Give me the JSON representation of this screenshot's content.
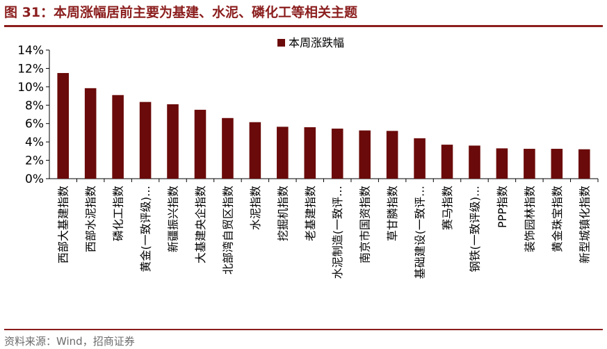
{
  "header": {
    "title": "图 31：本周涨幅居前主要为基建、水泥、磷化工等相关主题"
  },
  "footer": {
    "source": "资料来源：Wind，招商证券"
  },
  "colors": {
    "bar": "#6b0a0a",
    "accent": "#8b1d1d"
  },
  "chart_data": {
    "type": "bar",
    "title": "",
    "xlabel": "",
    "ylabel": "",
    "ylim": [
      0,
      14
    ],
    "yticks": [
      "0%",
      "2%",
      "4%",
      "6%",
      "8%",
      "10%",
      "12%",
      "14%"
    ],
    "grid": false,
    "legend": "top",
    "categories": [
      "西部大基建指数",
      "西部水泥指数",
      "磷化工指数",
      "黄金(一致评级)…",
      "新疆振兴指数",
      "大基建央企指数",
      "北部湾自贸区指数",
      "水泥指数",
      "挖掘机指数",
      "老基建指数",
      "水泥制造(一致评…",
      "南京市国资指数",
      "草甘膦指数",
      "基础建设(一致评…",
      "赛马指数",
      "钢铁(一致评级)…",
      "PPP指数",
      "装饰园林指数",
      "黄金珠宝指数",
      "新型城镇化指数"
    ],
    "series": [
      {
        "name": "本周涨跌幅",
        "values": [
          11.5,
          9.85,
          9.1,
          8.35,
          8.1,
          7.5,
          6.6,
          6.15,
          5.65,
          5.6,
          5.45,
          5.25,
          5.2,
          4.4,
          3.7,
          3.6,
          3.3,
          3.25,
          3.25,
          3.2
        ]
      }
    ]
  }
}
